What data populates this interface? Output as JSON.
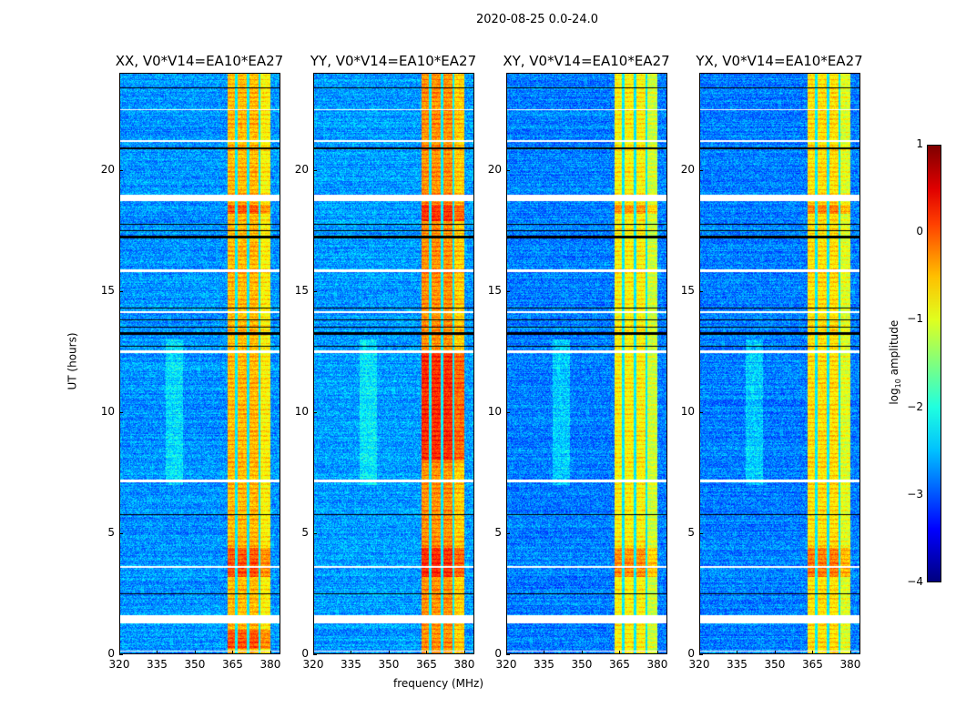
{
  "chart_data": {
    "type": "heatmap",
    "title": "2020-08-25 0.0-24.0",
    "xlabel": "frequency (MHz)",
    "ylabel": "UT (hours)",
    "xlim": [
      320,
      384
    ],
    "ylim": [
      0,
      24
    ],
    "xticks": [
      "320",
      "335",
      "350",
      "365",
      "380"
    ],
    "yticks": [
      "0",
      "5",
      "10",
      "15",
      "20"
    ],
    "panels": [
      {
        "title": "XX, V0*V14=EA10*EA27",
        "band_level": -0.6,
        "bg_level": -2.8,
        "hot_hours": [
          [
            0.2,
            1.0
          ],
          [
            3.2,
            4.4
          ],
          [
            18.2,
            18.6
          ]
        ]
      },
      {
        "title": "YY, V0*V14=EA10*EA27",
        "band_level": -0.4,
        "bg_level": -2.75,
        "hot_hours": [
          [
            3.2,
            4.4
          ],
          [
            17.9,
            18.6
          ],
          [
            8,
            12.5
          ]
        ]
      },
      {
        "title": "XY, V0*V14=EA10*EA27",
        "band_level": -0.9,
        "bg_level": -2.9,
        "hot_hours": [
          [
            3.2,
            4.4
          ],
          [
            18.2,
            18.6
          ]
        ]
      },
      {
        "title": "YX, V0*V14=EA10*EA27",
        "band_level": -0.8,
        "bg_level": -2.9,
        "hot_hours": [
          [
            3.2,
            4.4
          ],
          [
            18.2,
            18.6
          ]
        ]
      }
    ],
    "rfi_band_mhz": [
      363,
      380
    ],
    "band_gaps_mhz": [
      366.5,
      371.2,
      375.8
    ],
    "flagged_hours_white": [
      [
        1.25,
        1.6
      ],
      [
        18.75,
        19.0
      ],
      [
        12.45,
        12.55
      ],
      [
        7.1,
        7.2
      ],
      [
        3.55,
        3.62
      ],
      [
        14.1,
        14.2
      ],
      [
        15.8,
        15.9
      ],
      [
        0.1,
        0.15
      ],
      [
        21.2,
        21.25
      ],
      [
        22.5,
        22.55
      ]
    ],
    "flagged_hours_black": [
      [
        17.2,
        17.3
      ],
      [
        17.5,
        17.55
      ],
      [
        17.75,
        17.8
      ],
      [
        13.2,
        13.3
      ],
      [
        13.5,
        13.55
      ],
      [
        13.8,
        13.85
      ],
      [
        12.7,
        12.75
      ],
      [
        14.3,
        14.35
      ],
      [
        20.9,
        20.95
      ],
      [
        23.4,
        23.45
      ],
      [
        2.45,
        2.5
      ],
      [
        5.75,
        5.8
      ]
    ],
    "colorbar": {
      "label_main": "log",
      "label_sub": "10",
      "label_rest": " amplitude",
      "range": [
        -4,
        1
      ],
      "ticks": [
        "1",
        "0",
        "−1",
        "−2",
        "−3",
        "−4"
      ],
      "colormap": "jet"
    }
  }
}
